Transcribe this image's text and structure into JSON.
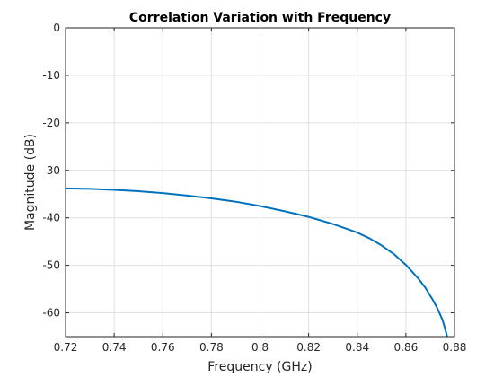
{
  "chart_data": {
    "type": "line",
    "title": "Correlation Variation with Frequency",
    "xlabel": "Frequency (GHz)",
    "ylabel": "Magnitude (dB)",
    "xlim": [
      0.72,
      0.88
    ],
    "ylim": [
      -65,
      0
    ],
    "xticks": [
      0.72,
      0.74,
      0.76,
      0.78,
      0.8,
      0.82,
      0.84,
      0.86,
      0.88
    ],
    "xtick_labels": [
      "0.72",
      "0.74",
      "0.76",
      "0.78",
      "0.8",
      "0.82",
      "0.84",
      "0.86",
      "0.88"
    ],
    "yticks": [
      0,
      -10,
      -20,
      -30,
      -40,
      -50,
      -60
    ],
    "ytick_labels": [
      "0",
      "-10",
      "-20",
      "-30",
      "-40",
      "-50",
      "-60"
    ],
    "grid": true,
    "series": [
      {
        "color": "#0072bd",
        "x": [
          0.72,
          0.73,
          0.74,
          0.75,
          0.76,
          0.77,
          0.78,
          0.79,
          0.8,
          0.81,
          0.82,
          0.83,
          0.84,
          0.845,
          0.85,
          0.855,
          0.86,
          0.865,
          0.868,
          0.871,
          0.873,
          0.875,
          0.876,
          0.877
        ],
        "y": [
          -33.8,
          -33.9,
          -34.1,
          -34.4,
          -34.8,
          -35.3,
          -35.9,
          -36.6,
          -37.5,
          -38.6,
          -39.8,
          -41.3,
          -43.1,
          -44.3,
          -45.8,
          -47.6,
          -49.9,
          -52.7,
          -54.7,
          -57.2,
          -59.1,
          -61.4,
          -63.1,
          -65.0
        ]
      }
    ]
  }
}
